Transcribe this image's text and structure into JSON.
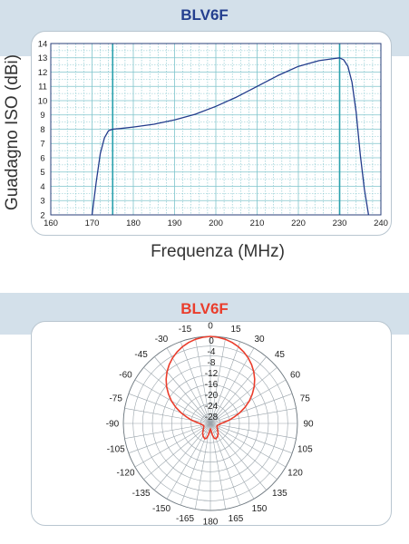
{
  "charts_meta": {
    "title_top": "BLV6F",
    "title_bottom": "BLV6F"
  },
  "colors": {
    "band": "#d3e0ea",
    "title_top": "#243f8f",
    "title_bottom": "#ea3d2c",
    "grid": "#7fc4cc",
    "curve_top": "#233c8c",
    "curve_bottom": "#ea3d2c",
    "polar_grid": "#9aa4ab"
  },
  "chart_data": [
    {
      "type": "line",
      "title": "BLV6F",
      "xlabel": "Frequenza (MHz)",
      "ylabel": "Guadagno ISO (dBi)",
      "xlim": [
        160,
        240
      ],
      "ylim": [
        2,
        14
      ],
      "x_ticks": [
        160,
        170,
        180,
        190,
        200,
        210,
        220,
        230,
        240
      ],
      "y_ticks": [
        2,
        3,
        4,
        5,
        6,
        7,
        8,
        9,
        10,
        11,
        12,
        13,
        14
      ],
      "grid": true,
      "highlight_x": [
        175,
        230
      ],
      "series": [
        {
          "x": [
            170,
            171,
            172,
            173,
            174,
            175,
            177,
            180,
            185,
            190,
            195,
            200,
            205,
            210,
            215,
            220,
            225,
            228,
            230,
            231,
            232,
            233,
            234,
            235,
            236,
            237
          ],
          "y": [
            2,
            4.3,
            6.3,
            7.4,
            7.9,
            8.0,
            8.05,
            8.15,
            8.35,
            8.65,
            9.05,
            9.6,
            10.25,
            11.0,
            11.75,
            12.4,
            12.8,
            12.92,
            13.0,
            12.85,
            12.4,
            11.3,
            9.2,
            6.2,
            3.8,
            2
          ]
        }
      ]
    },
    {
      "type": "polar",
      "title": "BLV6F",
      "angle_labels": [
        "0",
        "15",
        "30",
        "45",
        "60",
        "75",
        "90",
        "105",
        "120",
        "135",
        "150",
        "165",
        "180",
        "-165",
        "-150",
        "-135",
        "-120",
        "-105",
        "-90",
        "-75",
        "-60",
        "-45",
        "-30",
        "-15"
      ],
      "radial_labels": [
        "0",
        "-4",
        "-8",
        "-12",
        "-16",
        "-20",
        "-24",
        "-28"
      ],
      "rlim": [
        -32,
        0
      ],
      "series": [
        {
          "angles": [
            0,
            5,
            10,
            15,
            20,
            25,
            30,
            35,
            40,
            45,
            50,
            55,
            60,
            65,
            70,
            75,
            80,
            85,
            90,
            100,
            110,
            120,
            130,
            140,
            150,
            160,
            165,
            170,
            175,
            180
          ],
          "gain_db": [
            0,
            -0.2,
            -0.6,
            -1.2,
            -2.0,
            -3.0,
            -4.2,
            -5.6,
            -7.2,
            -9.0,
            -11.0,
            -13.2,
            -15.5,
            -18.0,
            -20.5,
            -23.0,
            -25.0,
            -26.8,
            -28.0,
            -29.0,
            -29.4,
            -29.2,
            -28.6,
            -27.6,
            -26.6,
            -26.0,
            -26.3,
            -27.6,
            -29.3,
            -30.0
          ]
        }
      ]
    }
  ]
}
